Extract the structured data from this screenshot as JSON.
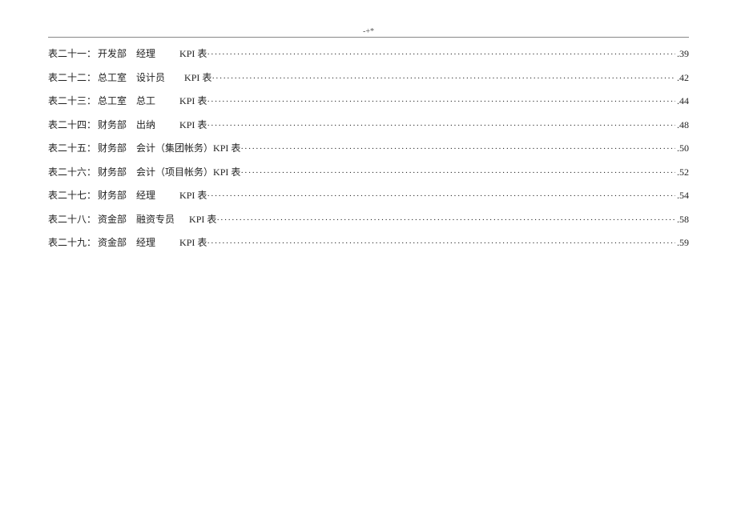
{
  "page_marker": "-+*",
  "kpi_label": "KPI 表",
  "toc": [
    {
      "prefix": "表二十一：",
      "dept": "开发部",
      "role": "经理",
      "role_pad": 10,
      "page": "39"
    },
    {
      "prefix": "表二十二：",
      "dept": "总工室",
      "role": "设计员",
      "role_pad": 8,
      "page": "42"
    },
    {
      "prefix": "表二十三：",
      "dept": "总工室",
      "role": "总工",
      "role_pad": 10,
      "page": "44"
    },
    {
      "prefix": "表二十四：",
      "dept": "财务部",
      "role": "出纳",
      "role_pad": 10,
      "page": "48"
    },
    {
      "prefix": "表二十五：",
      "dept": "财务部",
      "role": "会计（集团帐务）",
      "role_pad": 0,
      "page": "50"
    },
    {
      "prefix": "表二十六：",
      "dept": "财务部",
      "role": "会计（项目帐务）",
      "role_pad": 0,
      "page": "52"
    },
    {
      "prefix": "表二十七：",
      "dept": "财务部",
      "role": "经理",
      "role_pad": 10,
      "page": "54"
    },
    {
      "prefix": "表二十八：",
      "dept": "资金部",
      "role": "融资专员",
      "role_pad": 6,
      "page": "58"
    },
    {
      "prefix": "表二十九：",
      "dept": "资金部",
      "role": "经理",
      "role_pad": 10,
      "page": "59"
    }
  ]
}
